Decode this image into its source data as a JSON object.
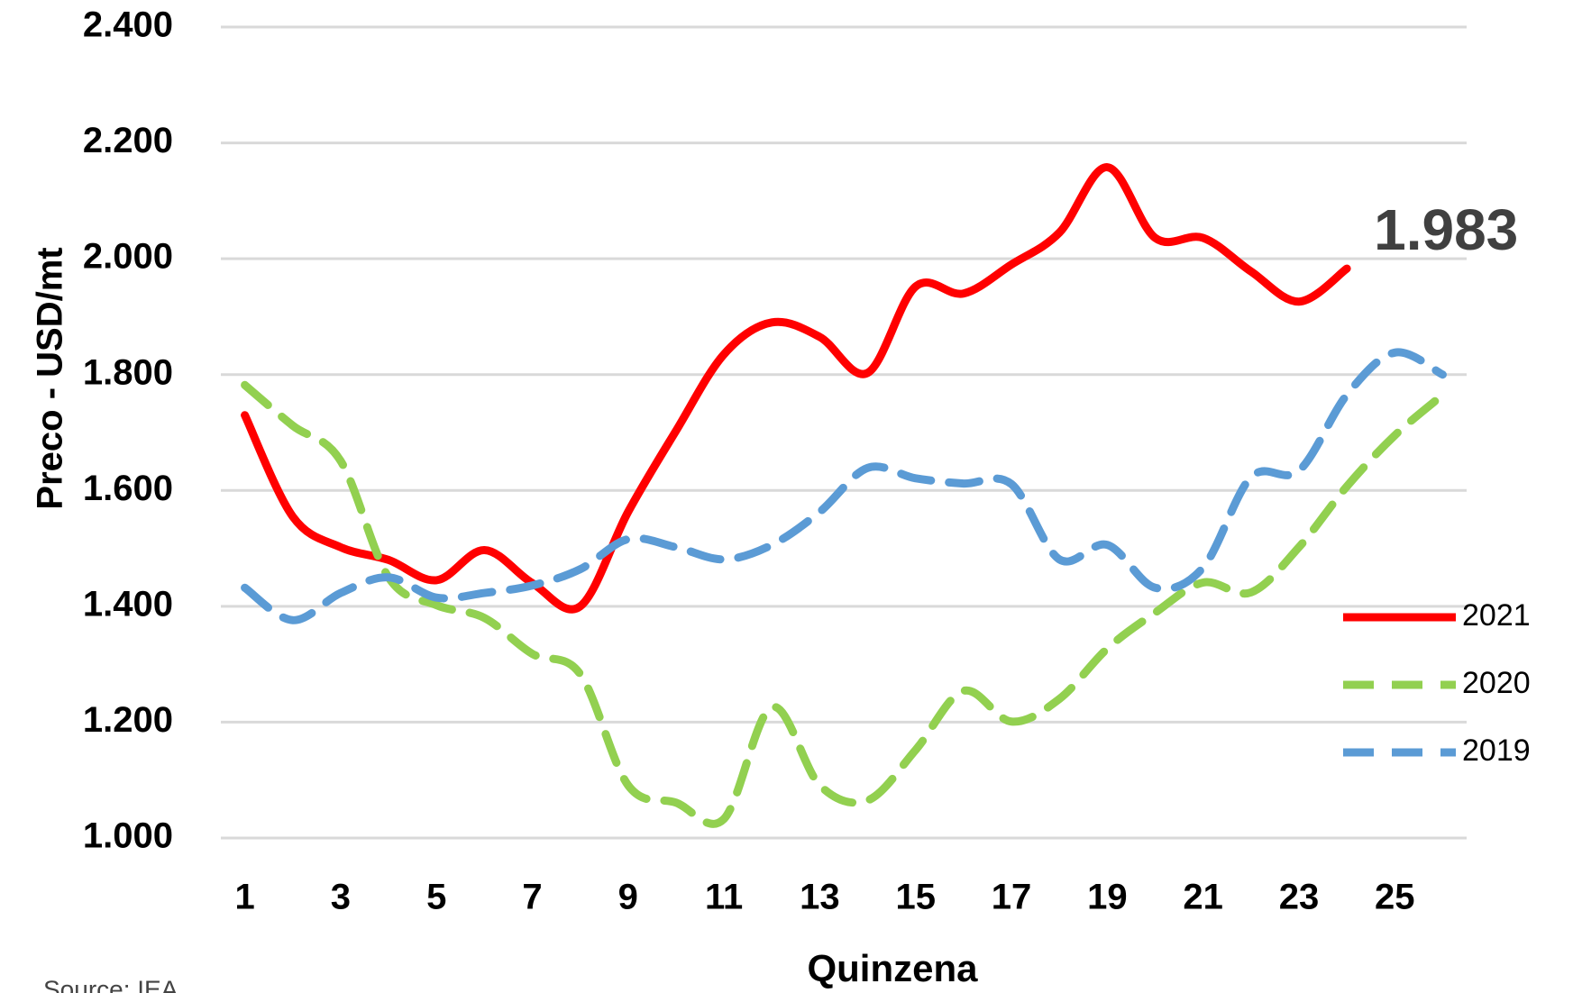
{
  "chart_data": {
    "type": "line",
    "y_label": "Preco - USD/mt",
    "x_label": "Quinzena",
    "source": "Source: IEA",
    "x": [
      1,
      2,
      3,
      4,
      5,
      6,
      7,
      8,
      9,
      10,
      11,
      12,
      13,
      14,
      15,
      16,
      17,
      18,
      19,
      20,
      21,
      22,
      23,
      24,
      25,
      26
    ],
    "xlim": [
      0.5,
      26.5
    ],
    "xticks": [
      1,
      3,
      5,
      7,
      9,
      11,
      13,
      15,
      17,
      19,
      21,
      23,
      25
    ],
    "ylim": [
      1000,
      2400
    ],
    "yticks": [
      {
        "value": 1000,
        "label": "1.000"
      },
      {
        "value": 1200,
        "label": "1.200"
      },
      {
        "value": 1400,
        "label": "1.400"
      },
      {
        "value": 1600,
        "label": "1.600"
      },
      {
        "value": 1800,
        "label": "1.800"
      },
      {
        "value": 2000,
        "label": "2.000"
      },
      {
        "value": 2200,
        "label": "2.200"
      },
      {
        "value": 2400,
        "label": "2.400"
      }
    ],
    "grid": true,
    "legend": "right",
    "series": [
      {
        "name": "2021",
        "color": "#ff0000",
        "dash": false,
        "values": [
          1730,
          1555,
          1502,
          1480,
          1445,
          1497,
          1440,
          1400,
          1563,
          1703,
          1835,
          1890,
          1865,
          1803,
          1952,
          1940,
          1990,
          2045,
          2158,
          2036,
          2036,
          1978,
          1926,
          1983,
          null,
          null
        ],
        "value_labels": [
          null,
          null,
          null,
          null,
          null,
          null,
          null,
          null,
          null,
          null,
          null,
          null,
          null,
          null,
          null,
          null,
          null,
          null,
          null,
          null,
          null,
          null,
          null,
          "1.983",
          null,
          null
        ]
      },
      {
        "name": "2020",
        "color": "#92d050",
        "dash": true,
        "values": [
          1782,
          1712,
          1651,
          1450,
          1402,
          1380,
          1318,
          1283,
          1091,
          1061,
          1033,
          1226,
          1091,
          1065,
          1152,
          1254,
          1201,
          1240,
          1327,
          1389,
          1441,
          1424,
          1502,
          1607,
          1695,
          1765
        ]
      },
      {
        "name": "2019",
        "color": "#5b9bd5",
        "dash": true,
        "values": [
          1432,
          1376,
          1423,
          1450,
          1415,
          1423,
          1436,
          1464,
          1516,
          1502,
          1481,
          1506,
          1563,
          1639,
          1621,
          1612,
          1611,
          1481,
          1506,
          1432,
          1467,
          1623,
          1634,
          1765,
          1838,
          1800
        ]
      }
    ]
  }
}
